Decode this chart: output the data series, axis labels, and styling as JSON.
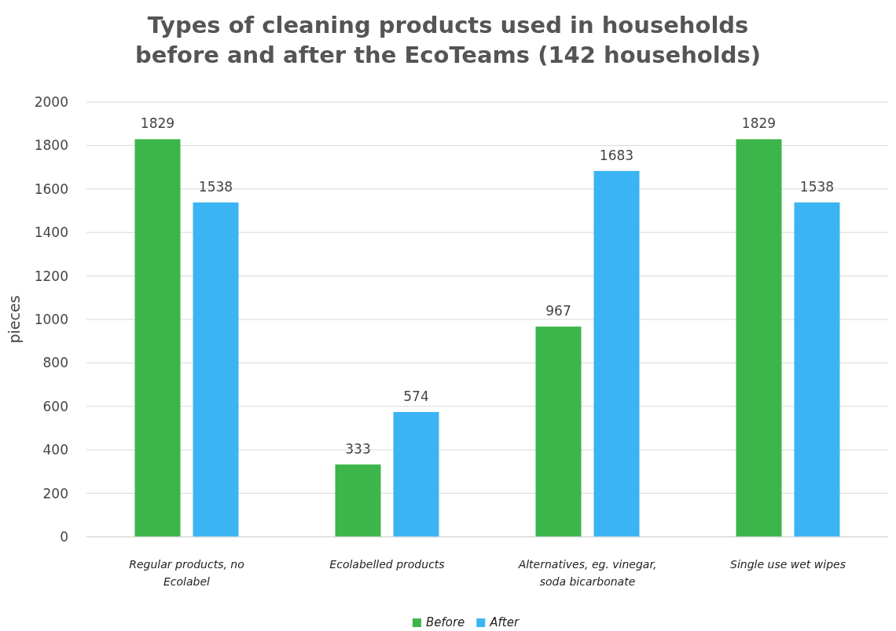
{
  "chart_data": {
    "type": "bar",
    "title": "Types of cleaning products used in households before and after the EcoTeams (142 households)",
    "ylabel": "pieces",
    "categories": [
      "Regular products, no Ecolabel",
      "Ecolabelled products",
      "Alternatives, eg. vinegar, soda bicarbonate",
      "Single use wet wipes"
    ],
    "series": [
      {
        "name": "Before",
        "color": "#3cb54a",
        "values": [
          1829,
          333,
          967,
          1829
        ]
      },
      {
        "name": "After",
        "color": "#3ab4f2",
        "values": [
          1538,
          574,
          1683,
          1538
        ]
      }
    ],
    "ylim": [
      0,
      2000
    ],
    "yticks": [
      0,
      200,
      400,
      600,
      800,
      1000,
      1200,
      1400,
      1600,
      1800,
      2000
    ],
    "grid": "y",
    "data_labels": true,
    "legend": "bottom"
  }
}
